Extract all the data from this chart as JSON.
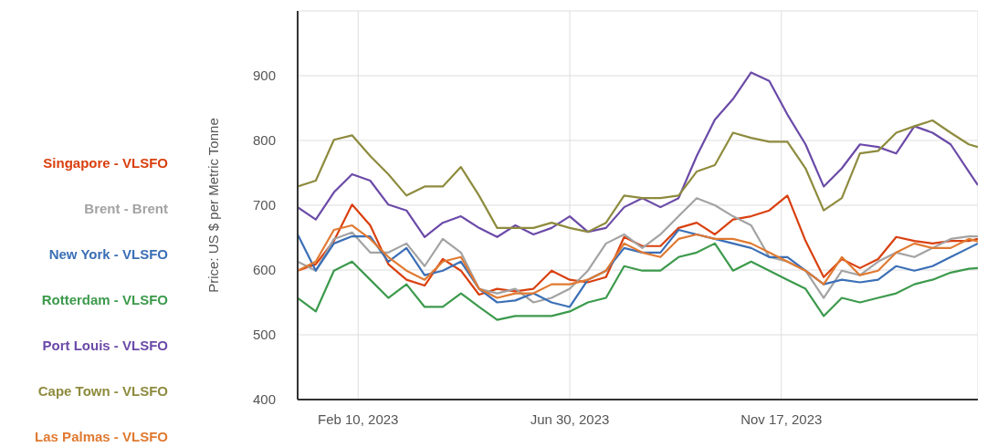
{
  "chart_data": {
    "type": "line",
    "ylabel": "Price: US $ per Metric Tonne",
    "x": [
      "2023-01-01",
      "2023-01-13",
      "2023-01-25",
      "2023-02-06",
      "2023-02-18",
      "2023-03-02",
      "2023-03-14",
      "2023-03-26",
      "2023-04-07",
      "2023-04-19",
      "2023-05-01",
      "2023-05-13",
      "2023-05-25",
      "2023-06-06",
      "2023-06-18",
      "2023-06-30",
      "2023-07-12",
      "2023-07-24",
      "2023-08-05",
      "2023-08-17",
      "2023-08-29",
      "2023-09-10",
      "2023-09-22",
      "2023-10-04",
      "2023-10-16",
      "2023-10-28",
      "2023-11-09",
      "2023-11-21",
      "2023-12-03",
      "2023-12-15",
      "2023-12-27",
      "2024-01-08",
      "2024-01-20",
      "2024-02-01",
      "2024-02-13",
      "2024-02-25",
      "2024-03-08",
      "2024-03-20",
      "2024-03-26"
    ],
    "series": [
      {
        "name": "Singapore - VLSFO",
        "color": "#d9400f",
        "values": [
          599,
          609,
          645,
          701,
          669,
          609,
          585,
          576,
          617,
          599,
          562,
          571,
          567,
          571,
          599,
          585,
          581,
          589,
          651,
          637,
          637,
          665,
          673,
          655,
          678,
          683,
          692,
          715,
          645,
          589,
          617,
          603,
          617,
          651,
          645,
          641,
          645,
          645,
          648
        ]
      },
      {
        "name": "Brent - Brent",
        "color": "#a3a3a3",
        "values": [
          613,
          599,
          648,
          658,
          627,
          627,
          641,
          606,
          648,
          627,
          571,
          564,
          571,
          550,
          557,
          571,
          599,
          641,
          655,
          634,
          655,
          683,
          711,
          700,
          683,
          669,
          620,
          613,
          599,
          557,
          599,
          592,
          613,
          627,
          620,
          634,
          648,
          652,
          652
        ]
      },
      {
        "name": "New York - VLSFO",
        "color": "#3b6fb6",
        "values": [
          655,
          599,
          641,
          652,
          652,
          613,
          634,
          592,
          599,
          613,
          571,
          550,
          553,
          564,
          550,
          543,
          585,
          599,
          634,
          627,
          627,
          662,
          655,
          648,
          641,
          634,
          620,
          620,
          599,
          578,
          585,
          581,
          585,
          606,
          599,
          606,
          620,
          634,
          641
        ]
      },
      {
        "name": "Rotterdam - VLSFO",
        "color": "#3c9a4c",
        "values": [
          557,
          536,
          599,
          613,
          585,
          557,
          578,
          543,
          543,
          564,
          543,
          523,
          529,
          529,
          529,
          536,
          550,
          557,
          606,
          599,
          599,
          620,
          627,
          641,
          599,
          613,
          599,
          585,
          571,
          529,
          557,
          550,
          557,
          564,
          578,
          585,
          596,
          602,
          603
        ]
      },
      {
        "name": "Port Louis - VLSFO",
        "color": "#6b4aa8",
        "values": [
          697,
          678,
          720,
          748,
          738,
          701,
          692,
          651,
          673,
          683,
          665,
          651,
          669,
          655,
          665,
          683,
          659,
          665,
          697,
          711,
          697,
          711,
          776,
          832,
          864,
          905,
          892,
          840,
          794,
          729,
          757,
          794,
          790,
          780,
          822,
          812,
          794,
          752,
          731
        ]
      },
      {
        "name": "Cape Town - VLSFO",
        "color": "#8e8b3e",
        "values": [
          729,
          738,
          801,
          808,
          776,
          748,
          715,
          729,
          729,
          759,
          715,
          665,
          665,
          665,
          673,
          665,
          659,
          673,
          715,
          711,
          711,
          715,
          752,
          762,
          812,
          804,
          798,
          798,
          757,
          692,
          711,
          780,
          784,
          812,
          822,
          831,
          812,
          794,
          790
        ]
      },
      {
        "name": "Las Palmas - VLSFO",
        "color": "#e07a32",
        "values": [
          599,
          613,
          662,
          669,
          648,
          620,
          599,
          585,
          613,
          620,
          571,
          557,
          564,
          564,
          578,
          578,
          585,
          599,
          641,
          627,
          620,
          648,
          655,
          648,
          648,
          641,
          627,
          613,
          599,
          578,
          620,
          592,
          599,
          627,
          641,
          634,
          634,
          648,
          644
        ]
      }
    ],
    "xlim": [
      "2023-01-01",
      "2024-03-26"
    ],
    "xticks": [
      {
        "value": "2023-02-10",
        "label": "Feb 10, 2023"
      },
      {
        "value": "2023-06-30",
        "label": "Jun 30, 2023"
      },
      {
        "value": "2023-11-17",
        "label": "Nov 17, 2023"
      }
    ],
    "ylim": [
      400,
      1000
    ],
    "yticks": [
      400,
      500,
      600,
      700,
      800,
      900,
      {
        "value": 1000,
        "label": null
      }
    ],
    "grid": true,
    "legend": "left",
    "marker": "none",
    "line_style": "solid"
  }
}
